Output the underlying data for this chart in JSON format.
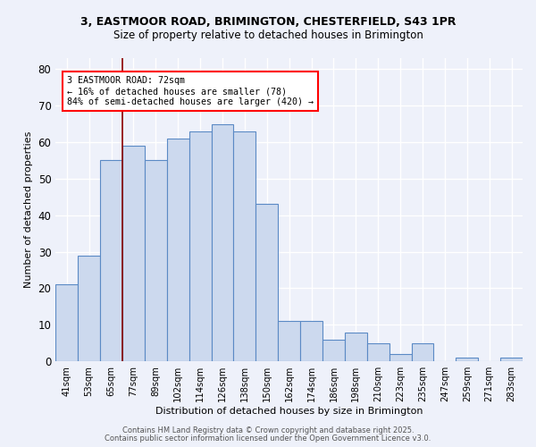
{
  "title_line1": "3, EASTMOOR ROAD, BRIMINGTON, CHESTERFIELD, S43 1PR",
  "title_line2": "Size of property relative to detached houses in Brimington",
  "xlabel": "Distribution of detached houses by size in Brimington",
  "ylabel": "Number of detached properties",
  "categories": [
    "41sqm",
    "53sqm",
    "65sqm",
    "77sqm",
    "89sqm",
    "102sqm",
    "114sqm",
    "126sqm",
    "138sqm",
    "150sqm",
    "162sqm",
    "174sqm",
    "186sqm",
    "198sqm",
    "210sqm",
    "223sqm",
    "235sqm",
    "247sqm",
    "259sqm",
    "271sqm",
    "283sqm"
  ],
  "values": [
    21,
    29,
    55,
    59,
    55,
    61,
    63,
    65,
    63,
    43,
    11,
    11,
    6,
    8,
    5,
    2,
    5,
    0,
    1,
    0,
    1
  ],
  "bar_color": "#ccd9ee",
  "bar_edge_color": "#5b8ac5",
  "ylim": [
    0,
    83
  ],
  "yticks": [
    0,
    10,
    20,
    30,
    40,
    50,
    60,
    70,
    80
  ],
  "annotation_text": "3 EASTMOOR ROAD: 72sqm\n← 16% of detached houses are smaller (78)\n84% of semi-detached houses are larger (420) →",
  "footer_line1": "Contains HM Land Registry data © Crown copyright and database right 2025.",
  "footer_line2": "Contains public sector information licensed under the Open Government Licence v3.0.",
  "background_color": "#eef1fa",
  "grid_color": "#ffffff"
}
